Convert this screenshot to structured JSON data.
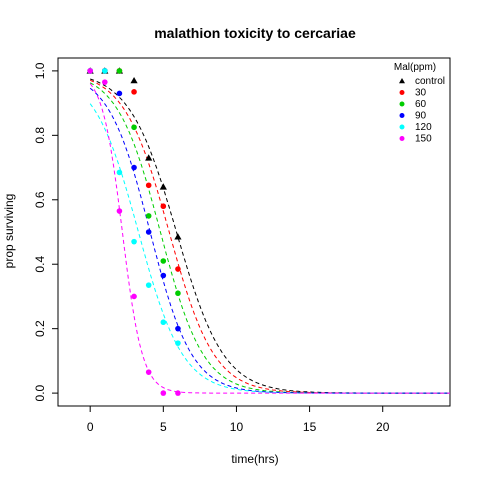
{
  "chart_data": {
    "type": "scatter",
    "title": "malathion toxicity to cercariae",
    "xlabel": "time(hrs)",
    "ylabel": "prop surviving",
    "xlim": [
      -2.2,
      24.6
    ],
    "ylim": [
      -0.04,
      1.04
    ],
    "xticks": [
      0,
      5,
      10,
      15,
      20
    ],
    "yticks": [
      0.0,
      0.2,
      0.4,
      0.6,
      0.8,
      1.0
    ],
    "x_tick_labels": [
      "0",
      "5",
      "10",
      "15",
      "20"
    ],
    "y_tick_labels": [
      "0.0",
      "0.2",
      "0.4",
      "0.6",
      "0.8",
      "1.0"
    ],
    "grid": false,
    "legend": {
      "title": "Mal(ppm)",
      "placement": "top-right"
    },
    "series": [
      {
        "name": "control",
        "color": "#000000",
        "marker": "triangle",
        "points": [
          [
            0,
            1.0
          ],
          [
            1,
            1.0
          ],
          [
            2,
            1.0
          ],
          [
            3,
            0.97
          ],
          [
            4,
            0.73
          ],
          [
            5,
            0.64
          ],
          [
            6,
            0.485
          ]
        ],
        "fit": {
          "x0": 5.9,
          "k": 0.62
        }
      },
      {
        "name": "30",
        "color": "#ff0000",
        "marker": "circle",
        "points": [
          [
            0,
            1.0
          ],
          [
            1,
            1.0
          ],
          [
            2,
            1.0
          ],
          [
            3,
            0.935
          ],
          [
            4,
            0.645
          ],
          [
            5,
            0.58
          ],
          [
            6,
            0.385
          ]
        ],
        "fit": {
          "x0": 5.4,
          "k": 0.65
        }
      },
      {
        "name": "60",
        "color": "#00cd00",
        "marker": "circle",
        "points": [
          [
            0,
            1.0
          ],
          [
            1,
            1.0
          ],
          [
            2,
            1.0
          ],
          [
            3,
            0.825
          ],
          [
            4,
            0.55
          ],
          [
            5,
            0.41
          ],
          [
            6,
            0.31
          ]
        ],
        "fit": {
          "x0": 4.8,
          "k": 0.68
        }
      },
      {
        "name": "90",
        "color": "#0000ff",
        "marker": "circle",
        "points": [
          [
            0,
            1.0
          ],
          [
            1,
            1.0
          ],
          [
            2,
            0.93
          ],
          [
            3,
            0.7
          ],
          [
            4,
            0.5
          ],
          [
            5,
            0.365
          ],
          [
            6,
            0.2
          ]
        ],
        "fit": {
          "x0": 4.1,
          "k": 0.7
        }
      },
      {
        "name": "120",
        "color": "#00ffff",
        "marker": "circle",
        "points": [
          [
            0,
            1.0
          ],
          [
            1,
            1.0
          ],
          [
            2,
            0.685
          ],
          [
            3,
            0.47
          ],
          [
            4,
            0.335
          ],
          [
            5,
            0.22
          ],
          [
            6,
            0.155
          ]
        ],
        "fit": {
          "x0": 3.3,
          "k": 0.66
        }
      },
      {
        "name": "150",
        "color": "#ff00ff",
        "marker": "circle",
        "points": [
          [
            0,
            1.0
          ],
          [
            1,
            0.965
          ],
          [
            2,
            0.565
          ],
          [
            3,
            0.3
          ],
          [
            4,
            0.065
          ],
          [
            5,
            0.0
          ],
          [
            6,
            0.0
          ]
        ],
        "fit": {
          "x0": 2.2,
          "k": 1.45
        }
      }
    ]
  }
}
